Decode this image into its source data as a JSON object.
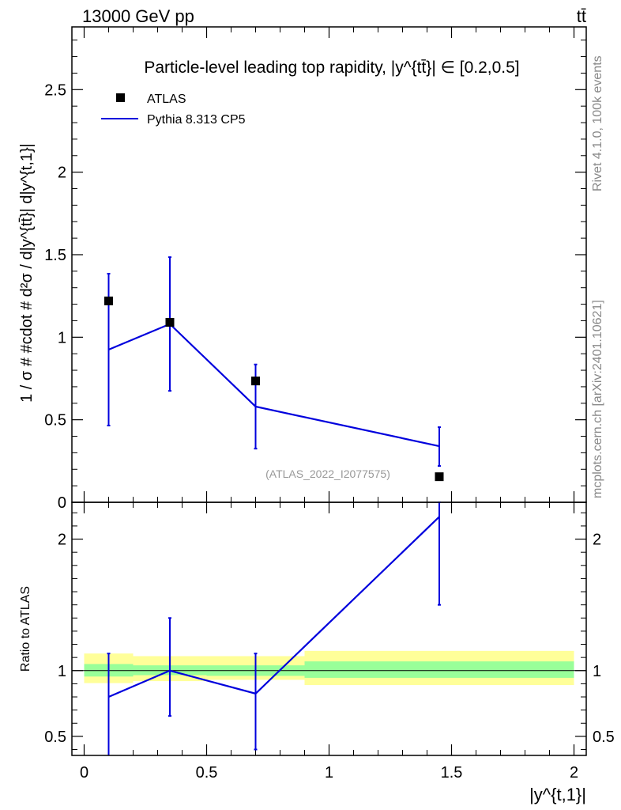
{
  "header": {
    "energy_label": "13000 GeV pp",
    "process_label": "tt̄"
  },
  "side_labels": {
    "rivet": "Rivet 4.1.0,  100k events",
    "mcplots": "mcplots.cern.ch [arXiv:2401.10621]"
  },
  "chart_data": [
    {
      "type": "scatter",
      "panel": "main",
      "title": "Particle-level leading top rapidity, |y^{tt̄}| ∈ [0.2,0.5]",
      "ylabel": "1 / σ # #cdot # d²σ / d|y^{tt̄}| d|y^{t,1}|",
      "watermark": "(ATLAS_2022_I2077575)",
      "xlim": [
        -0.05,
        2.05
      ],
      "ylim": [
        0,
        2.88
      ],
      "y_ticks": [
        0,
        0.5,
        1,
        1.5,
        2,
        2.5
      ],
      "y_tick_labels": [
        "0",
        "0.5",
        "1",
        "1.5",
        "2",
        "2.5"
      ],
      "legend_placement": "top-left",
      "series": [
        {
          "name": "ATLAS",
          "kind": "points",
          "color": "#000000",
          "x": [
            0.1,
            0.35,
            0.7,
            1.45
          ],
          "y": [
            1.22,
            1.09,
            0.735,
            0.155
          ]
        },
        {
          "name": "Pythia 8.313 CP5",
          "kind": "line",
          "color": "#0000dd",
          "x": [
            0.1,
            0.35,
            0.7,
            1.45
          ],
          "y": [
            0.925,
            1.08,
            0.58,
            0.34
          ],
          "err_low": [
            0.465,
            0.675,
            0.325,
            0.22
          ],
          "err_high": [
            1.385,
            1.485,
            0.835,
            0.455
          ]
        }
      ]
    },
    {
      "type": "line",
      "panel": "ratio",
      "ylabel": "Ratio to ATLAS",
      "xlabel": "|y^{t,1}|",
      "xlim": [
        -0.05,
        2.05
      ],
      "ylim": [
        0.355,
        2.28
      ],
      "y_ticks": [
        0.5,
        1,
        2
      ],
      "y_tick_labels": [
        "0.5",
        "1",
        "2"
      ],
      "x_ticks": [
        0,
        0.5,
        1,
        1.5,
        2
      ],
      "x_tick_labels": [
        "0",
        "0.5",
        "1",
        "1.5",
        "2"
      ],
      "bands": {
        "edges": [
          0,
          0.2,
          0.5,
          0.9,
          2.0
        ],
        "inner_low": [
          0.955,
          0.965,
          0.96,
          0.945
        ],
        "inner_high": [
          1.05,
          1.04,
          1.04,
          1.07
        ],
        "outer_low": [
          0.905,
          0.92,
          0.93,
          0.89
        ],
        "outer_high": [
          1.13,
          1.11,
          1.11,
          1.15
        ],
        "inner_color": "#99ff99",
        "outer_color": "#ffff99"
      },
      "series": [
        {
          "name": "Pythia 8.313 CP5",
          "color": "#0000dd",
          "x": [
            0.1,
            0.35,
            0.7,
            1.45
          ],
          "y": [
            0.8,
            1.0,
            0.825,
            2.17
          ],
          "err_low": [
            0.33,
            0.655,
            0.4,
            1.5
          ],
          "err_high": [
            1.13,
            1.4,
            1.13,
            2.28
          ]
        }
      ]
    }
  ]
}
